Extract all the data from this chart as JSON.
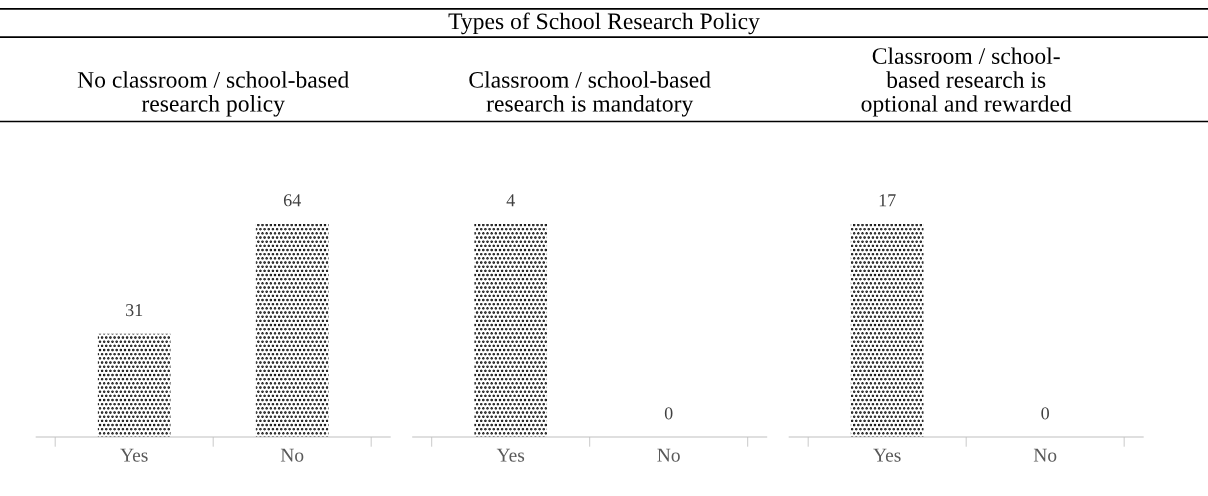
{
  "chart_data": [
    {
      "type": "bar",
      "title": "No classroom / school-based\nresearch policy",
      "annotations": [
        "Types of School Research Policy"
      ],
      "categories": [
        "Yes",
        "No"
      ],
      "values": [
        31,
        64
      ],
      "color": "#000000",
      "data_labels": true,
      "grid": false,
      "legend": false
    },
    {
      "type": "bar",
      "title": "Classroom / school-based\nresearch is mandatory",
      "categories": [
        "Yes",
        "No"
      ],
      "values": [
        4,
        0
      ],
      "color": "#000000",
      "data_labels": true,
      "grid": false,
      "legend": false
    },
    {
      "type": "bar",
      "title": "Classroom / school-\nbased research is\noptional and rewarded",
      "categories": [
        "Yes",
        "No"
      ],
      "values": [
        17,
        0
      ],
      "color": "#000000",
      "data_labels": true,
      "grid": false,
      "legend": false
    }
  ]
}
